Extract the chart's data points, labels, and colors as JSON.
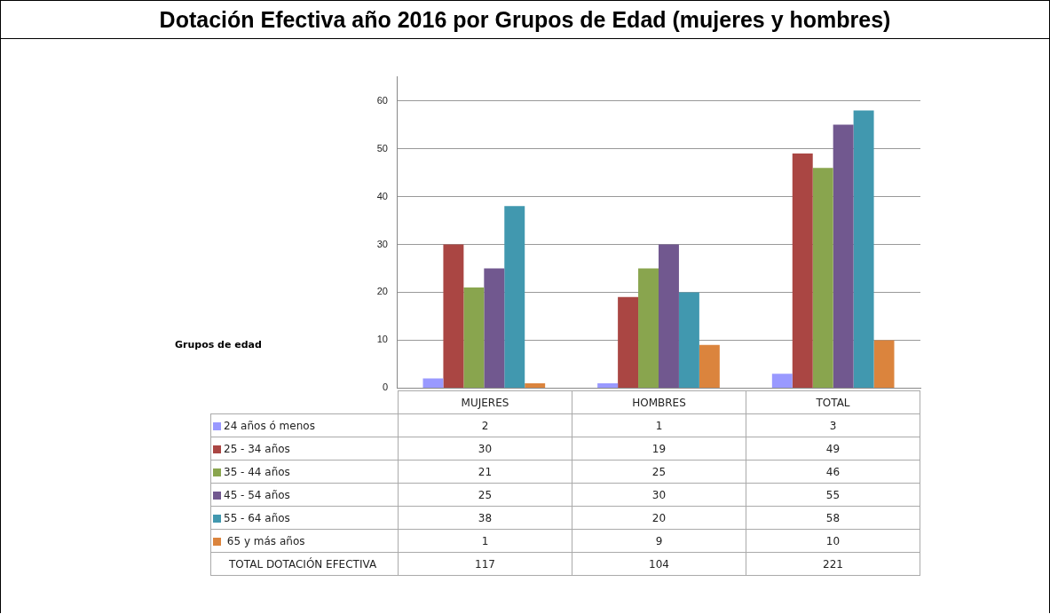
{
  "chart_data": {
    "type": "bar",
    "title": "Dotación Efectiva año 2016 por Grupos de Edad (mujeres y hombres)",
    "categories": [
      "MUJERES",
      "HOMBRES",
      "TOTAL"
    ],
    "series": [
      {
        "name": "24 años ó menos",
        "color": "#9999ff",
        "values": [
          2,
          1,
          3
        ]
      },
      {
        "name": "25 - 34 años",
        "color": "#aa4643",
        "values": [
          30,
          19,
          49
        ]
      },
      {
        "name": "35 - 44 años",
        "color": "#89a54e",
        "values": [
          21,
          25,
          46
        ]
      },
      {
        "name": "45 - 54 años",
        "color": "#71588f",
        "values": [
          25,
          30,
          55
        ]
      },
      {
        "name": "55 - 64 años",
        "color": "#4198af",
        "values": [
          38,
          20,
          58
        ]
      },
      {
        "name": " 65  y más años",
        "color": "#db843d",
        "values": [
          1,
          9,
          10
        ]
      }
    ],
    "ylim": [
      0,
      65
    ],
    "yticks": [
      0,
      10,
      20,
      30,
      40,
      50,
      60
    ],
    "grid": "y",
    "legend": "bottom",
    "data_labels": true,
    "annotations": [
      "Grupos de edad",
      "TOTAL DOTACIÓN EFECTIVA",
      "117",
      "104",
      "221"
    ]
  }
}
